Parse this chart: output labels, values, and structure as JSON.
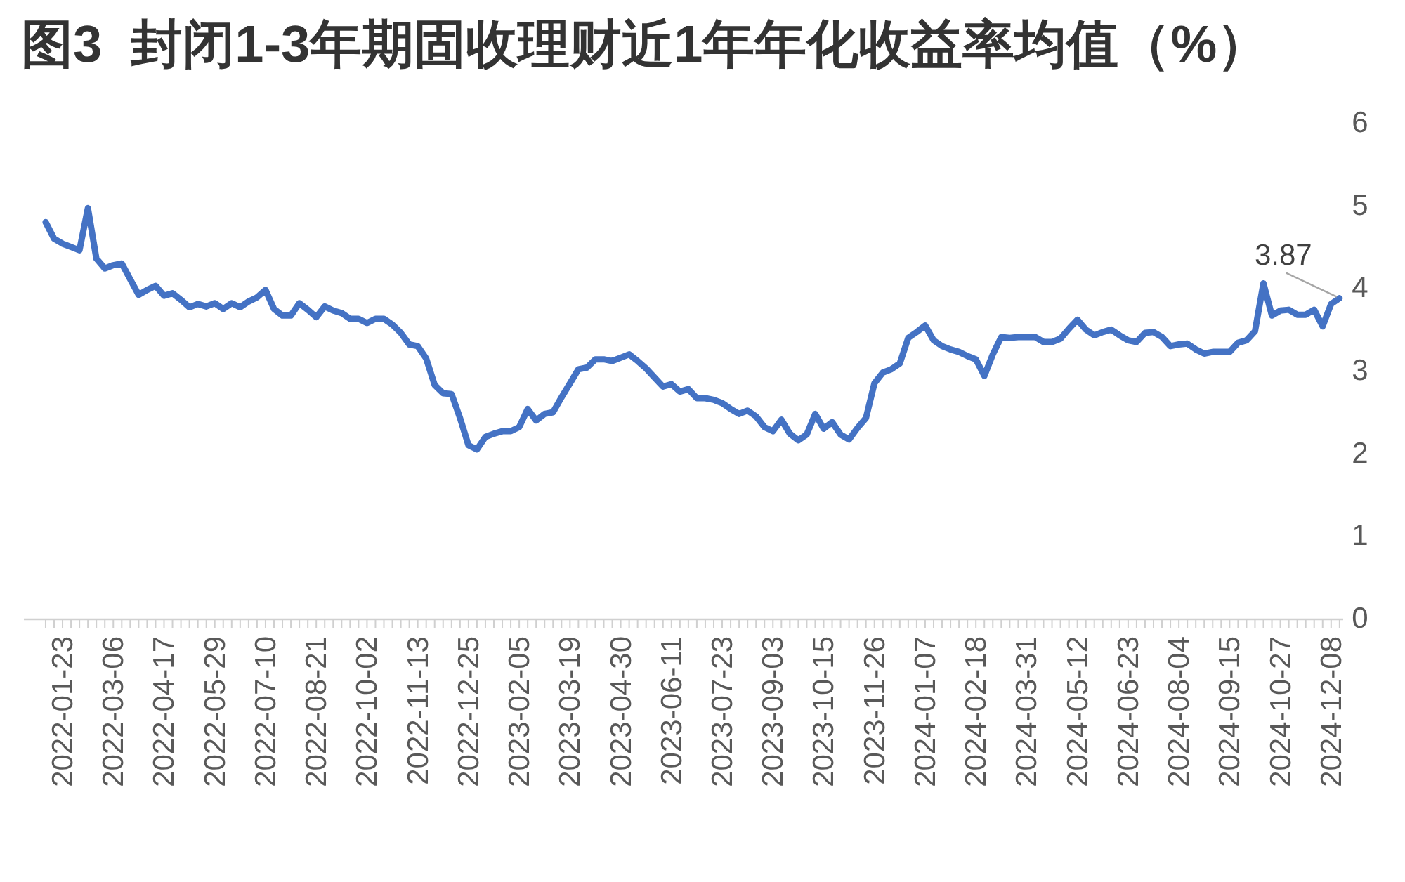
{
  "chart_data": {
    "type": "line",
    "title": "图3  封闭1-3年期固收理财近1年年化收益率均值（%）",
    "x": [
      "2022-01-09",
      "2022-01-16",
      "2022-01-23",
      "2022-01-30",
      "2022-02-06",
      "2022-02-13",
      "2022-02-20",
      "2022-02-27",
      "2022-03-06",
      "2022-03-13",
      "2022-03-20",
      "2022-03-27",
      "2022-04-03",
      "2022-04-10",
      "2022-04-17",
      "2022-04-24",
      "2022-05-01",
      "2022-05-08",
      "2022-05-15",
      "2022-05-22",
      "2022-05-29",
      "2022-06-05",
      "2022-06-12",
      "2022-06-19",
      "2022-06-26",
      "2022-07-03",
      "2022-07-10",
      "2022-07-17",
      "2022-07-24",
      "2022-07-31",
      "2022-08-07",
      "2022-08-14",
      "2022-08-21",
      "2022-08-28",
      "2022-09-04",
      "2022-09-11",
      "2022-09-18",
      "2022-09-25",
      "2022-10-02",
      "2022-10-09",
      "2022-10-16",
      "2022-10-23",
      "2022-10-30",
      "2022-11-06",
      "2022-11-13",
      "2022-11-20",
      "2022-11-27",
      "2022-12-04",
      "2022-12-11",
      "2022-12-18",
      "2022-12-25",
      "2023-01-01",
      "2023-01-08",
      "2023-01-15",
      "2023-01-22",
      "2023-01-29",
      "2023-02-05",
      "2023-02-12",
      "2023-02-19",
      "2023-02-26",
      "2023-03-05",
      "2023-03-12",
      "2023-03-19",
      "2023-03-26",
      "2023-04-02",
      "2023-04-09",
      "2023-04-16",
      "2023-04-23",
      "2023-04-30",
      "2023-05-07",
      "2023-05-14",
      "2023-05-21",
      "2023-05-28",
      "2023-06-04",
      "2023-06-11",
      "2023-06-18",
      "2023-06-25",
      "2023-07-02",
      "2023-07-09",
      "2023-07-16",
      "2023-07-23",
      "2023-07-30",
      "2023-08-06",
      "2023-08-13",
      "2023-08-20",
      "2023-08-27",
      "2023-09-03",
      "2023-09-10",
      "2023-09-17",
      "2023-09-24",
      "2023-10-01",
      "2023-10-08",
      "2023-10-15",
      "2023-10-22",
      "2023-10-29",
      "2023-11-05",
      "2023-11-12",
      "2023-11-19",
      "2023-11-26",
      "2023-12-03",
      "2023-12-10",
      "2023-12-17",
      "2023-12-24",
      "2023-12-31",
      "2024-01-07",
      "2024-01-14",
      "2024-01-21",
      "2024-01-28",
      "2024-02-04",
      "2024-02-11",
      "2024-02-18",
      "2024-02-25",
      "2024-03-03",
      "2024-03-10",
      "2024-03-17",
      "2024-03-24",
      "2024-03-31",
      "2024-04-07",
      "2024-04-14",
      "2024-04-21",
      "2024-04-28",
      "2024-05-05",
      "2024-05-12",
      "2024-05-19",
      "2024-05-26",
      "2024-06-02",
      "2024-06-09",
      "2024-06-16",
      "2024-06-23",
      "2024-06-30",
      "2024-07-07",
      "2024-07-14",
      "2024-07-21",
      "2024-07-28",
      "2024-08-04",
      "2024-08-11",
      "2024-08-18",
      "2024-08-25",
      "2024-09-01",
      "2024-09-08",
      "2024-09-15",
      "2024-09-22",
      "2024-09-29",
      "2024-10-06",
      "2024-10-13",
      "2024-10-20",
      "2024-10-27",
      "2024-11-03",
      "2024-11-10",
      "2024-11-17",
      "2024-11-24",
      "2024-12-01",
      "2024-12-08",
      "2024-12-15"
    ],
    "series": [
      {
        "color": "#4472c4",
        "values": [
          4.79,
          4.59,
          4.53,
          4.49,
          4.45,
          4.96,
          4.35,
          4.23,
          4.27,
          4.29,
          4.1,
          3.91,
          3.97,
          4.02,
          3.9,
          3.93,
          3.85,
          3.76,
          3.8,
          3.77,
          3.81,
          3.74,
          3.81,
          3.76,
          3.83,
          3.88,
          3.97,
          3.74,
          3.66,
          3.66,
          3.81,
          3.73,
          3.64,
          3.77,
          3.72,
          3.69,
          3.62,
          3.62,
          3.57,
          3.62,
          3.62,
          3.55,
          3.45,
          3.31,
          3.29,
          3.14,
          2.82,
          2.72,
          2.71,
          2.42,
          2.09,
          2.04,
          2.19,
          2.23,
          2.26,
          2.26,
          2.31,
          2.53,
          2.39,
          2.47,
          2.49,
          2.67,
          2.84,
          3.01,
          3.03,
          3.13,
          3.13,
          3.11,
          3.15,
          3.19,
          3.11,
          3.02,
          2.91,
          2.8,
          2.83,
          2.74,
          2.77,
          2.66,
          2.66,
          2.64,
          2.6,
          2.53,
          2.47,
          2.51,
          2.44,
          2.31,
          2.26,
          2.4,
          2.23,
          2.15,
          2.22,
          2.47,
          2.29,
          2.37,
          2.22,
          2.16,
          2.3,
          2.42,
          2.84,
          2.97,
          3.01,
          3.08,
          3.39,
          3.46,
          3.54,
          3.36,
          3.29,
          3.25,
          3.22,
          3.17,
          3.13,
          2.93,
          3.19,
          3.4,
          3.39,
          3.4,
          3.4,
          3.4,
          3.34,
          3.34,
          3.38,
          3.5,
          3.61,
          3.49,
          3.42,
          3.46,
          3.49,
          3.42,
          3.36,
          3.34,
          3.45,
          3.46,
          3.4,
          3.29,
          3.31,
          3.32,
          3.25,
          3.2,
          3.22,
          3.22,
          3.22,
          3.33,
          3.36,
          3.47,
          4.05,
          3.66,
          3.72,
          3.73,
          3.67,
          3.67,
          3.73,
          3.53,
          3.8,
          3.87
        ]
      }
    ],
    "xlim": [
      "2021-12-22",
      "2024-12-18"
    ],
    "xticks": [
      {
        "value": "2022-01-09",
        "label": null
      },
      {
        "value": "2022-01-16",
        "label": null
      },
      "2022-01-23",
      {
        "value": "2022-01-30",
        "label": null
      },
      {
        "value": "2022-02-06",
        "label": null
      },
      {
        "value": "2022-02-13",
        "label": null
      },
      {
        "value": "2022-02-20",
        "label": null
      },
      {
        "value": "2022-02-27",
        "label": null
      },
      "2022-03-06",
      {
        "value": "2022-03-13",
        "label": null
      },
      {
        "value": "2022-03-20",
        "label": null
      },
      {
        "value": "2022-03-27",
        "label": null
      },
      {
        "value": "2022-04-03",
        "label": null
      },
      {
        "value": "2022-04-10",
        "label": null
      },
      "2022-04-17",
      {
        "value": "2022-04-24",
        "label": null
      },
      {
        "value": "2022-05-01",
        "label": null
      },
      {
        "value": "2022-05-08",
        "label": null
      },
      {
        "value": "2022-05-15",
        "label": null
      },
      {
        "value": "2022-05-22",
        "label": null
      },
      "2022-05-29",
      {
        "value": "2022-06-05",
        "label": null
      },
      {
        "value": "2022-06-12",
        "label": null
      },
      {
        "value": "2022-06-19",
        "label": null
      },
      {
        "value": "2022-06-26",
        "label": null
      },
      {
        "value": "2022-07-03",
        "label": null
      },
      "2022-07-10",
      {
        "value": "2022-07-17",
        "label": null
      },
      {
        "value": "2022-07-24",
        "label": null
      },
      {
        "value": "2022-07-31",
        "label": null
      },
      {
        "value": "2022-08-07",
        "label": null
      },
      {
        "value": "2022-08-14",
        "label": null
      },
      "2022-08-21",
      {
        "value": "2022-08-28",
        "label": null
      },
      {
        "value": "2022-09-04",
        "label": null
      },
      {
        "value": "2022-09-11",
        "label": null
      },
      {
        "value": "2022-09-18",
        "label": null
      },
      {
        "value": "2022-09-25",
        "label": null
      },
      "2022-10-02",
      {
        "value": "2022-10-09",
        "label": null
      },
      {
        "value": "2022-10-16",
        "label": null
      },
      {
        "value": "2022-10-23",
        "label": null
      },
      {
        "value": "2022-10-30",
        "label": null
      },
      {
        "value": "2022-11-06",
        "label": null
      },
      "2022-11-13",
      {
        "value": "2022-11-20",
        "label": null
      },
      {
        "value": "2022-11-27",
        "label": null
      },
      {
        "value": "2022-12-04",
        "label": null
      },
      {
        "value": "2022-12-11",
        "label": null
      },
      {
        "value": "2022-12-18",
        "label": null
      },
      "2022-12-25",
      {
        "value": "2023-01-01",
        "label": null
      },
      {
        "value": "2023-01-08",
        "label": null
      },
      {
        "value": "2023-01-15",
        "label": null
      },
      {
        "value": "2023-01-22",
        "label": null
      },
      {
        "value": "2023-01-29",
        "label": null
      },
      "2023-02-05",
      {
        "value": "2023-02-12",
        "label": null
      },
      {
        "value": "2023-02-19",
        "label": null
      },
      {
        "value": "2023-02-26",
        "label": null
      },
      {
        "value": "2023-03-05",
        "label": null
      },
      {
        "value": "2023-03-12",
        "label": null
      },
      "2023-03-19",
      {
        "value": "2023-03-26",
        "label": null
      },
      {
        "value": "2023-04-02",
        "label": null
      },
      {
        "value": "2023-04-09",
        "label": null
      },
      {
        "value": "2023-04-16",
        "label": null
      },
      {
        "value": "2023-04-23",
        "label": null
      },
      "2023-04-30",
      {
        "value": "2023-05-07",
        "label": null
      },
      {
        "value": "2023-05-14",
        "label": null
      },
      {
        "value": "2023-05-21",
        "label": null
      },
      {
        "value": "2023-05-28",
        "label": null
      },
      {
        "value": "2023-06-04",
        "label": null
      },
      "2023-06-11",
      {
        "value": "2023-06-18",
        "label": null
      },
      {
        "value": "2023-06-25",
        "label": null
      },
      {
        "value": "2023-07-02",
        "label": null
      },
      {
        "value": "2023-07-09",
        "label": null
      },
      {
        "value": "2023-07-16",
        "label": null
      },
      "2023-07-23",
      {
        "value": "2023-07-30",
        "label": null
      },
      {
        "value": "2023-08-06",
        "label": null
      },
      {
        "value": "2023-08-13",
        "label": null
      },
      {
        "value": "2023-08-20",
        "label": null
      },
      {
        "value": "2023-08-27",
        "label": null
      },
      "2023-09-03",
      {
        "value": "2023-09-10",
        "label": null
      },
      {
        "value": "2023-09-17",
        "label": null
      },
      {
        "value": "2023-09-24",
        "label": null
      },
      {
        "value": "2023-10-01",
        "label": null
      },
      {
        "value": "2023-10-08",
        "label": null
      },
      "2023-10-15",
      {
        "value": "2023-10-22",
        "label": null
      },
      {
        "value": "2023-10-29",
        "label": null
      },
      {
        "value": "2023-11-05",
        "label": null
      },
      {
        "value": "2023-11-12",
        "label": null
      },
      {
        "value": "2023-11-19",
        "label": null
      },
      "2023-11-26",
      {
        "value": "2023-12-03",
        "label": null
      },
      {
        "value": "2023-12-10",
        "label": null
      },
      {
        "value": "2023-12-17",
        "label": null
      },
      {
        "value": "2023-12-24",
        "label": null
      },
      {
        "value": "2023-12-31",
        "label": null
      },
      "2024-01-07",
      {
        "value": "2024-01-14",
        "label": null
      },
      {
        "value": "2024-01-21",
        "label": null
      },
      {
        "value": "2024-01-28",
        "label": null
      },
      {
        "value": "2024-02-04",
        "label": null
      },
      {
        "value": "2024-02-11",
        "label": null
      },
      "2024-02-18",
      {
        "value": "2024-02-25",
        "label": null
      },
      {
        "value": "2024-03-03",
        "label": null
      },
      {
        "value": "2024-03-10",
        "label": null
      },
      {
        "value": "2024-03-17",
        "label": null
      },
      {
        "value": "2024-03-24",
        "label": null
      },
      "2024-03-31",
      {
        "value": "2024-04-07",
        "label": null
      },
      {
        "value": "2024-04-14",
        "label": null
      },
      {
        "value": "2024-04-21",
        "label": null
      },
      {
        "value": "2024-04-28",
        "label": null
      },
      {
        "value": "2024-05-05",
        "label": null
      },
      "2024-05-12",
      {
        "value": "2024-05-19",
        "label": null
      },
      {
        "value": "2024-05-26",
        "label": null
      },
      {
        "value": "2024-06-02",
        "label": null
      },
      {
        "value": "2024-06-09",
        "label": null
      },
      {
        "value": "2024-06-16",
        "label": null
      },
      "2024-06-23",
      {
        "value": "2024-06-30",
        "label": null
      },
      {
        "value": "2024-07-07",
        "label": null
      },
      {
        "value": "2024-07-14",
        "label": null
      },
      {
        "value": "2024-07-21",
        "label": null
      },
      {
        "value": "2024-07-28",
        "label": null
      },
      "2024-08-04",
      {
        "value": "2024-08-11",
        "label": null
      },
      {
        "value": "2024-08-18",
        "label": null
      },
      {
        "value": "2024-08-25",
        "label": null
      },
      {
        "value": "2024-09-01",
        "label": null
      },
      {
        "value": "2024-09-08",
        "label": null
      },
      "2024-09-15",
      {
        "value": "2024-09-22",
        "label": null
      },
      {
        "value": "2024-09-29",
        "label": null
      },
      {
        "value": "2024-10-06",
        "label": null
      },
      {
        "value": "2024-10-13",
        "label": null
      },
      {
        "value": "2024-10-20",
        "label": null
      },
      "2024-10-27",
      {
        "value": "2024-11-03",
        "label": null
      },
      {
        "value": "2024-11-10",
        "label": null
      },
      {
        "value": "2024-11-17",
        "label": null
      },
      {
        "value": "2024-11-24",
        "label": null
      },
      {
        "value": "2024-12-01",
        "label": null
      },
      "2024-12-08",
      {
        "value": "2024-12-15",
        "label": null
      }
    ],
    "ylim": [
      0,
      6
    ],
    "yticks": [
      0,
      1,
      2,
      3,
      4,
      5,
      6
    ],
    "annotations": [
      {
        "text": "3.87",
        "x": "2024-12-15",
        "y": 3.87
      }
    ]
  }
}
